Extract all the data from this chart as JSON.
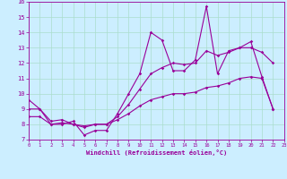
{
  "title": "",
  "xlabel": "Windchill (Refroidissement éolien,°C)",
  "ylabel": "",
  "bg_color": "#cceeff",
  "line_color": "#990099",
  "grid_color": "#aaddcc",
  "x": [
    0,
    1,
    2,
    3,
    4,
    5,
    6,
    7,
    8,
    9,
    10,
    11,
    12,
    13,
    14,
    15,
    16,
    17,
    18,
    19,
    20,
    21,
    22,
    23
  ],
  "line1": [
    9.6,
    9.0,
    8.0,
    8.0,
    8.2,
    7.3,
    7.6,
    7.6,
    8.7,
    10.0,
    11.3,
    14.0,
    13.5,
    11.5,
    11.5,
    12.2,
    15.7,
    11.3,
    12.8,
    13.0,
    13.4,
    11.1,
    9.0,
    null
  ],
  "line2": [
    9.0,
    9.0,
    8.2,
    8.3,
    8.0,
    7.8,
    8.0,
    8.0,
    8.5,
    9.3,
    10.3,
    11.3,
    11.7,
    12.0,
    11.9,
    12.0,
    12.8,
    12.5,
    12.7,
    13.0,
    13.0,
    12.7,
    12.0,
    null
  ],
  "line3": [
    8.5,
    8.5,
    8.0,
    8.1,
    8.0,
    7.9,
    8.0,
    8.0,
    8.3,
    8.7,
    9.2,
    9.6,
    9.8,
    10.0,
    10.0,
    10.1,
    10.4,
    10.5,
    10.7,
    11.0,
    11.1,
    11.0,
    9.0,
    null
  ],
  "xmin": 0,
  "xmax": 23,
  "ymin": 7,
  "ymax": 16,
  "yticks": [
    7,
    8,
    9,
    10,
    11,
    12,
    13,
    14,
    15,
    16
  ]
}
